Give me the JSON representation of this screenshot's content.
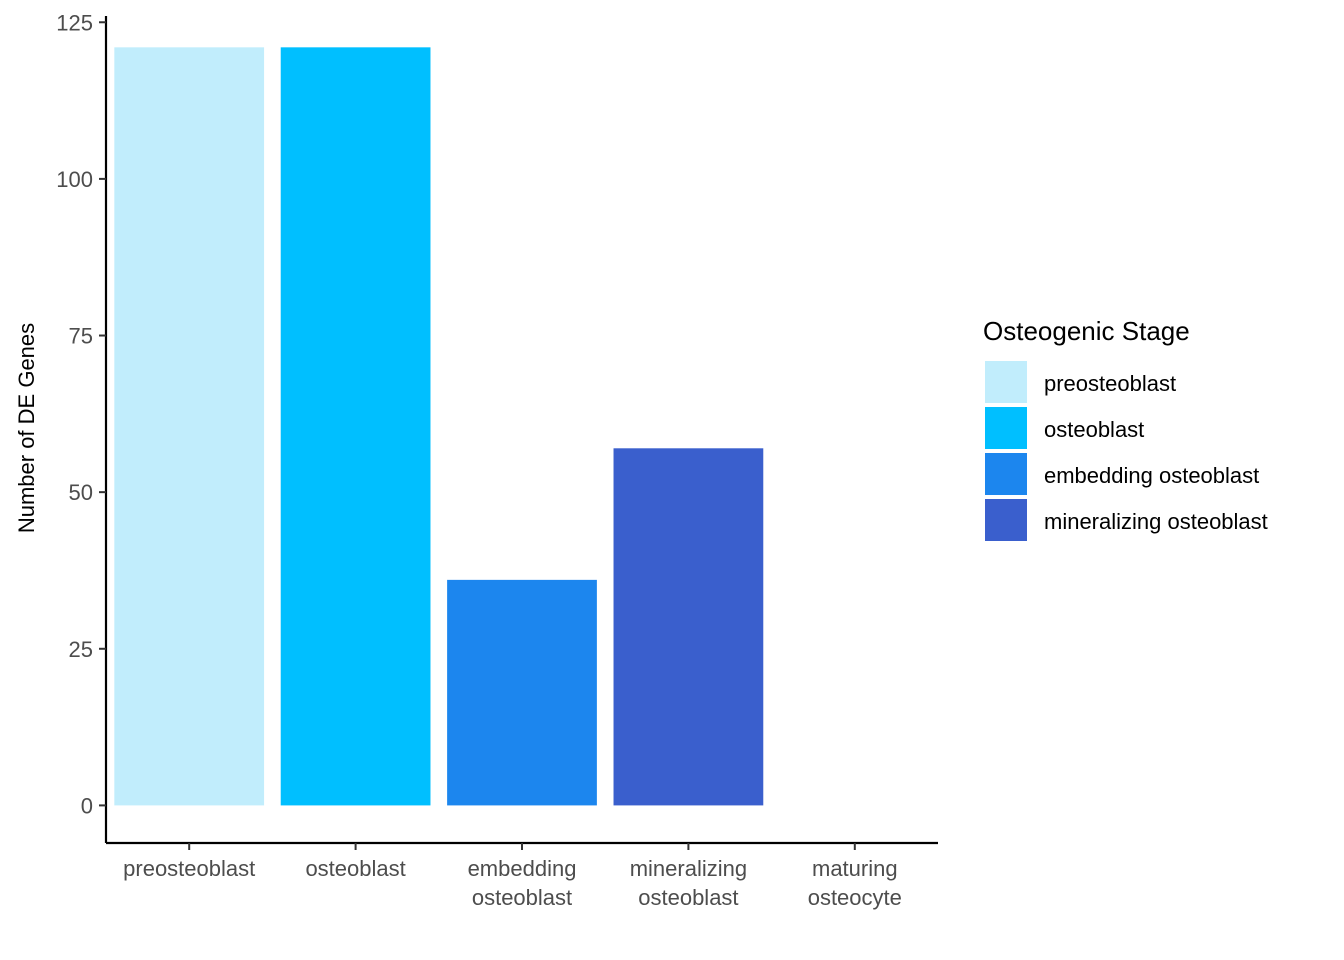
{
  "chart_data": {
    "type": "bar",
    "categories": [
      [
        "preosteoblast"
      ],
      [
        "osteoblast"
      ],
      [
        "embedding",
        "osteoblast"
      ],
      [
        "mineralizing",
        "osteoblast"
      ],
      [
        "maturing",
        "osteocyte"
      ]
    ],
    "values": [
      121,
      121,
      36,
      57,
      0
    ],
    "colors": [
      "#c1edfc",
      "#00bfff",
      "#1c86ee",
      "#3a5fcd",
      "#ffffff"
    ],
    "ylabel": "Number of DE Genes",
    "xlabel": "",
    "title": "",
    "ylim": [
      -6,
      126
    ],
    "yticks": [
      0,
      25,
      50,
      75,
      100,
      125
    ],
    "grid": false,
    "legend": {
      "title": "Osteogenic Stage",
      "placement": "right",
      "items": [
        {
          "label": "preosteoblast",
          "color": "#c1edfc"
        },
        {
          "label": "osteoblast",
          "color": "#00bfff"
        },
        {
          "label": "embedding osteoblast",
          "color": "#1c86ee"
        },
        {
          "label": "mineralizing osteoblast",
          "color": "#3a5fcd"
        }
      ]
    }
  }
}
